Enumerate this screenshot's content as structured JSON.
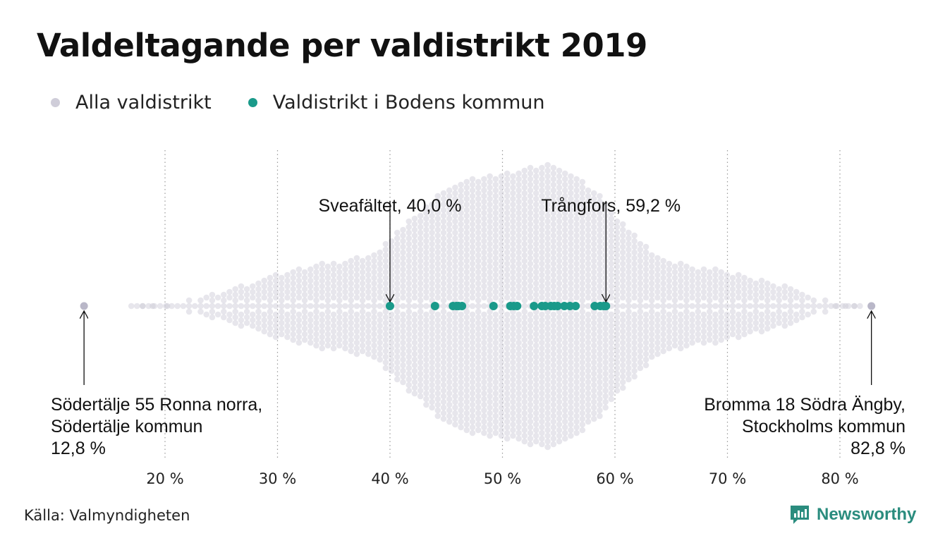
{
  "title": "Valdeltagande per valdistrikt 2019",
  "legend": {
    "all": "Alla valdistrikt",
    "boden": "Valdistrikt i Bodens kommun"
  },
  "source": "Källa: Valmyndigheten",
  "brand": {
    "name": "Newsworthy",
    "icon": "newsworthy-logo-icon"
  },
  "colors": {
    "all": "#cfcdd9",
    "boden": "#1a9a8a",
    "text": "#111111",
    "grid": "#999999"
  },
  "chart_data": {
    "type": "scatter",
    "subtype": "beeswarm",
    "xlim": [
      12,
      84
    ],
    "ticks": [
      20,
      30,
      40,
      50,
      60,
      70,
      80
    ],
    "tick_labels": [
      "20 %",
      "30 %",
      "40 %",
      "50 %",
      "60 %",
      "70 %",
      "80 %"
    ],
    "grid": "vertical dotted",
    "series": [
      {
        "name": "Alla valdistrikt",
        "distribution": "about 6 300 districts, most between 40 % and 70 %, peak near 54 %",
        "min": 12.8,
        "max": 82.8
      },
      {
        "name": "Valdistrikt i Bodens kommun",
        "values": [
          40.0,
          44.0,
          45.6,
          45.9,
          46.1,
          46.4,
          49.2,
          50.7,
          51.0,
          51.3,
          52.8,
          53.5,
          53.8,
          54.3,
          54.6,
          54.9,
          55.5,
          56.0,
          56.5,
          58.2,
          58.7,
          59.0,
          59.2
        ]
      }
    ],
    "annotations": [
      {
        "lines": [
          "Sveafältet, 40,0 %"
        ],
        "x": 40.0
      },
      {
        "lines": [
          "Trångfors, 59,2 %"
        ],
        "x": 59.2
      },
      {
        "lines": [
          "Södertälje 55 Ronna norra,",
          "Södertälje kommun",
          "12,8 %"
        ],
        "x": 12.8
      },
      {
        "lines": [
          "Bromma 18 Södra Ängby,",
          "Stockholms kommun",
          "82,8 %"
        ],
        "x": 82.8
      }
    ]
  }
}
